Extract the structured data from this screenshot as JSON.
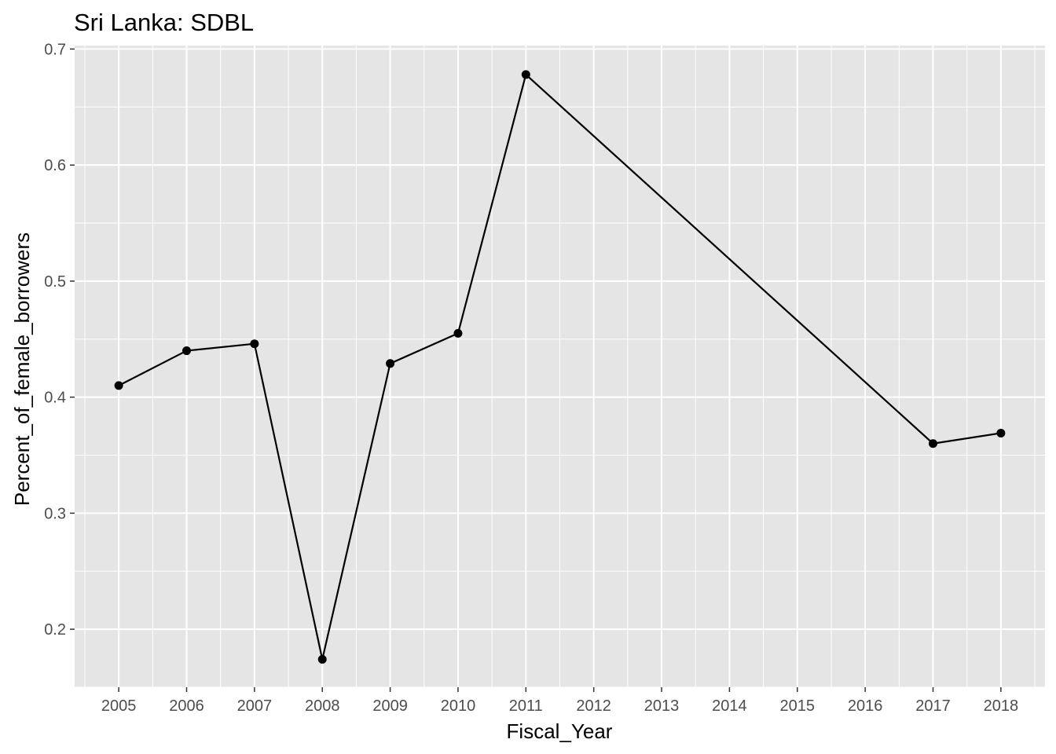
{
  "chart_data": {
    "type": "line",
    "title": "Sri Lanka:  SDBL",
    "xlabel": "Fiscal_Year",
    "ylabel": "Percent_of_female_borrowers",
    "x_ticks": [
      "2005",
      "2006",
      "2007",
      "2008",
      "2009",
      "2010",
      "2011",
      "2012",
      "2013",
      "2014",
      "2015",
      "2016",
      "2017",
      "2018"
    ],
    "y_ticks": [
      "0.2",
      "0.3",
      "0.4",
      "0.5",
      "0.6",
      "0.7"
    ],
    "xlim": [
      2004.35,
      2018.65
    ],
    "ylim": [
      0.15,
      0.703
    ],
    "grid": true,
    "legend": "none",
    "colors": {
      "panel": "#e5e5e5",
      "grid": "#ffffff",
      "line": "#000000",
      "point": "#000000",
      "tick_label": "#4d4d4d"
    },
    "series": [
      {
        "x": [
          2005,
          2006,
          2007,
          2008,
          2009,
          2010,
          2011,
          2017,
          2018
        ],
        "y": [
          0.41,
          0.44,
          0.446,
          0.174,
          0.429,
          0.455,
          0.678,
          0.36,
          0.369
        ]
      }
    ]
  }
}
